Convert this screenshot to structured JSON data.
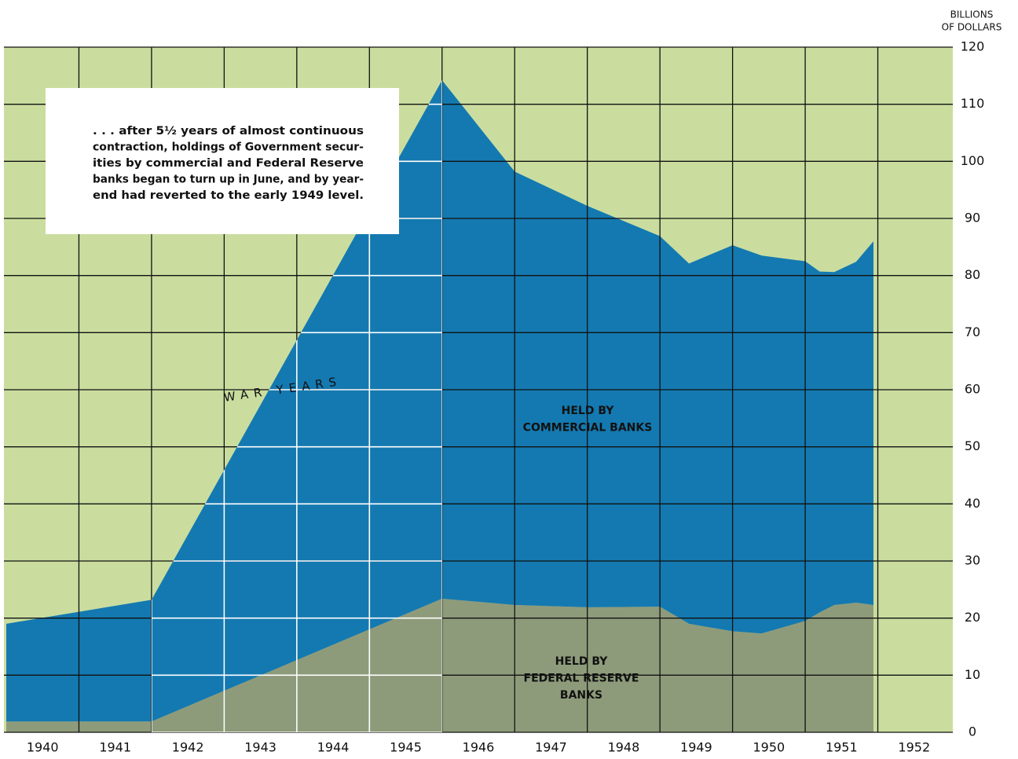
{
  "chart_data": {
    "type": "stacked_area",
    "x": [
      1940,
      1942,
      1946,
      1947,
      1948,
      1949,
      1949.4,
      1950,
      1950.4,
      1951,
      1951.2,
      1951.4,
      1951.7,
      1951.94
    ],
    "series": [
      {
        "name": [
          "HELD BY",
          "FEDERAL RESERVE",
          "BANKS"
        ],
        "color": "#8e9b7a",
        "values": [
          1.9,
          1.9,
          23.4,
          22.3,
          21.9,
          22.0,
          19.0,
          17.7,
          17.3,
          19.5,
          21.0,
          22.3,
          22.7,
          22.3
        ]
      },
      {
        "name": [
          "HELD BY",
          "COMMERCIAL BANKS"
        ],
        "color": "#1479b0",
        "values": [
          17.1,
          21.3,
          90.8,
          75.9,
          70.3,
          64.9,
          63.1,
          67.6,
          66.2,
          63.0,
          59.7,
          58.3,
          59.7,
          63.7
        ]
      }
    ],
    "xlim": [
      1940,
      1953
    ],
    "xticks": [
      {
        "value": 1940.5,
        "label": "1940"
      },
      {
        "value": 1941.5,
        "label": "1941"
      },
      {
        "value": 1942.5,
        "label": "1942"
      },
      {
        "value": 1943.5,
        "label": "1943"
      },
      {
        "value": 1944.5,
        "label": "1944"
      },
      {
        "value": 1945.5,
        "label": "1945"
      },
      {
        "value": 1946.5,
        "label": "1946"
      },
      {
        "value": 1947.5,
        "label": "1947"
      },
      {
        "value": 1948.5,
        "label": "1948"
      },
      {
        "value": 1949.5,
        "label": "1949"
      },
      {
        "value": 1950.5,
        "label": "1950"
      },
      {
        "value": 1951.5,
        "label": "1951"
      },
      {
        "value": 1952.5,
        "label": "1952"
      }
    ],
    "xgrid": [
      1941,
      1942,
      1943,
      1944,
      1945,
      1946,
      1947,
      1948,
      1949,
      1950,
      1951,
      1952
    ],
    "ylim": [
      0,
      120
    ],
    "yticks": [
      0,
      10,
      20,
      30,
      40,
      50,
      60,
      70,
      80,
      90,
      100,
      110,
      120
    ],
    "ylabel": [
      "BILLIONS",
      "OF DOLLARS"
    ],
    "grid": true,
    "war_years": {
      "label": "WAR YEARS",
      "span": [
        1942,
        1946
      ]
    },
    "annotation": [
      ". . . after 5½ years of almost continuous",
      "contraction, holdings of Government secur-",
      "ities by commercial and Federal Reserve",
      "banks began to turn up in June, and by year-",
      "end had reverted to the early 1949 level."
    ]
  }
}
